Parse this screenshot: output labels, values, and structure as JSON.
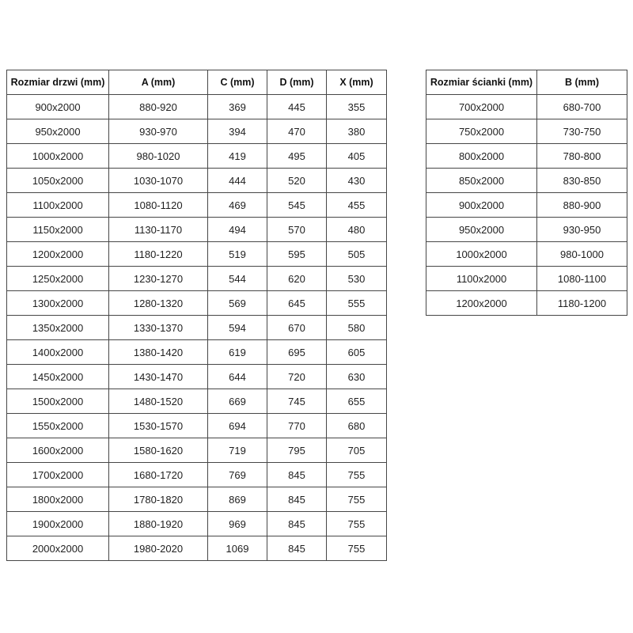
{
  "page": {
    "background": "#ffffff",
    "text_color": "#1f1f1f",
    "border_color": "#474747"
  },
  "doors_table": {
    "headers": [
      "Rozmiar drzwi (mm)",
      "A (mm)",
      "C (mm)",
      "D (mm)",
      "X (mm)"
    ],
    "rows": [
      [
        "900x2000",
        "880-920",
        "369",
        "445",
        "355"
      ],
      [
        "950x2000",
        "930-970",
        "394",
        "470",
        "380"
      ],
      [
        "1000x2000",
        "980-1020",
        "419",
        "495",
        "405"
      ],
      [
        "1050x2000",
        "1030-1070",
        "444",
        "520",
        "430"
      ],
      [
        "1100x2000",
        "1080-1120",
        "469",
        "545",
        "455"
      ],
      [
        "1150x2000",
        "1130-1170",
        "494",
        "570",
        "480"
      ],
      [
        "1200x2000",
        "1180-1220",
        "519",
        "595",
        "505"
      ],
      [
        "1250x2000",
        "1230-1270",
        "544",
        "620",
        "530"
      ],
      [
        "1300x2000",
        "1280-1320",
        "569",
        "645",
        "555"
      ],
      [
        "1350x2000",
        "1330-1370",
        "594",
        "670",
        "580"
      ],
      [
        "1400x2000",
        "1380-1420",
        "619",
        "695",
        "605"
      ],
      [
        "1450x2000",
        "1430-1470",
        "644",
        "720",
        "630"
      ],
      [
        "1500x2000",
        "1480-1520",
        "669",
        "745",
        "655"
      ],
      [
        "1550x2000",
        "1530-1570",
        "694",
        "770",
        "680"
      ],
      [
        "1600x2000",
        "1580-1620",
        "719",
        "795",
        "705"
      ],
      [
        "1700x2000",
        "1680-1720",
        "769",
        "845",
        "755"
      ],
      [
        "1800x2000",
        "1780-1820",
        "869",
        "845",
        "755"
      ],
      [
        "1900x2000",
        "1880-1920",
        "969",
        "845",
        "755"
      ],
      [
        "2000x2000",
        "1980-2020",
        "1069",
        "845",
        "755"
      ]
    ]
  },
  "walls_table": {
    "headers": [
      "Rozmiar ścianki (mm)",
      "B (mm)"
    ],
    "rows": [
      [
        "700x2000",
        "680-700"
      ],
      [
        "750x2000",
        "730-750"
      ],
      [
        "800x2000",
        "780-800"
      ],
      [
        "850x2000",
        "830-850"
      ],
      [
        "900x2000",
        "880-900"
      ],
      [
        "950x2000",
        "930-950"
      ],
      [
        "1000x2000",
        "980-1000"
      ],
      [
        "1100x2000",
        "1080-1100"
      ],
      [
        "1200x2000",
        "1180-1200"
      ]
    ]
  }
}
